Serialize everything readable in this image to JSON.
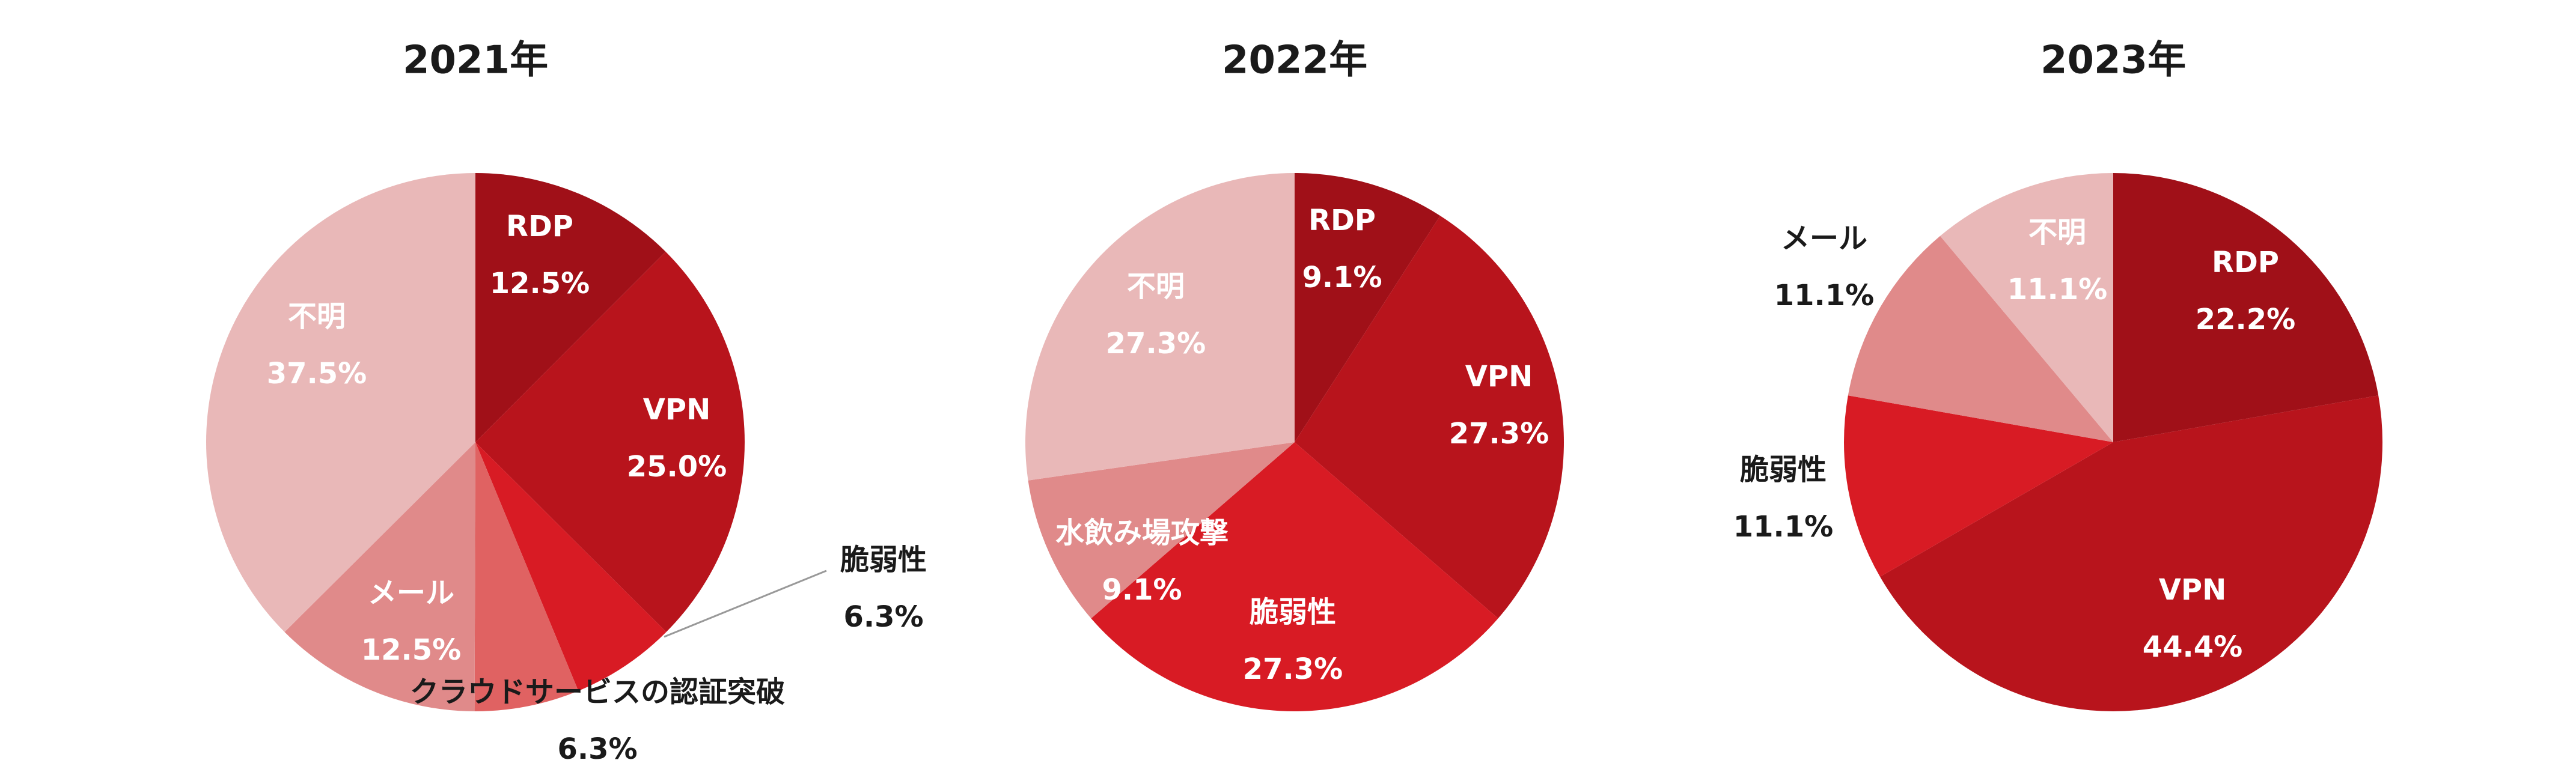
{
  "chart_data": [
    {
      "type": "pie",
      "title": "2021年",
      "categories": [
        "RDP",
        "VPN",
        "脆弱性",
        "クラウドサービスの認証突破",
        "メール",
        "不明"
      ],
      "values": [
        12.5,
        25.0,
        6.3,
        6.3,
        12.5,
        37.5
      ],
      "value_labels": [
        "12.5%",
        "25.0%",
        "6.3%",
        "6.3%",
        "12.5%",
        "37.5%"
      ],
      "colors": [
        "#a01018",
        "#b8141c",
        "#d81b24",
        "#e06262",
        "#e08a8a",
        "#e9b8b8"
      ]
    },
    {
      "type": "pie",
      "title": "2022年",
      "categories": [
        "RDP",
        "VPN",
        "脆弱性",
        "水飲み場攻撃",
        "不明"
      ],
      "values": [
        9.1,
        27.3,
        27.3,
        9.1,
        27.3
      ],
      "value_labels": [
        "9.1%",
        "27.3%",
        "27.3%",
        "9.1%",
        "27.3%"
      ],
      "colors": [
        "#a01018",
        "#b8141c",
        "#d81b24",
        "#e08a8a",
        "#e9b8b8"
      ]
    },
    {
      "type": "pie",
      "title": "2023年",
      "categories": [
        "RDP",
        "VPN",
        "脆弱性",
        "メール",
        "不明"
      ],
      "values": [
        22.2,
        44.4,
        11.1,
        11.1,
        11.1
      ],
      "value_labels": [
        "22.2%",
        "44.4%",
        "11.1%",
        "11.1%",
        "11.1%"
      ],
      "colors": [
        "#a01018",
        "#b8141c",
        "#d81b24",
        "#e08a8a",
        "#e9b8b8"
      ]
    }
  ]
}
